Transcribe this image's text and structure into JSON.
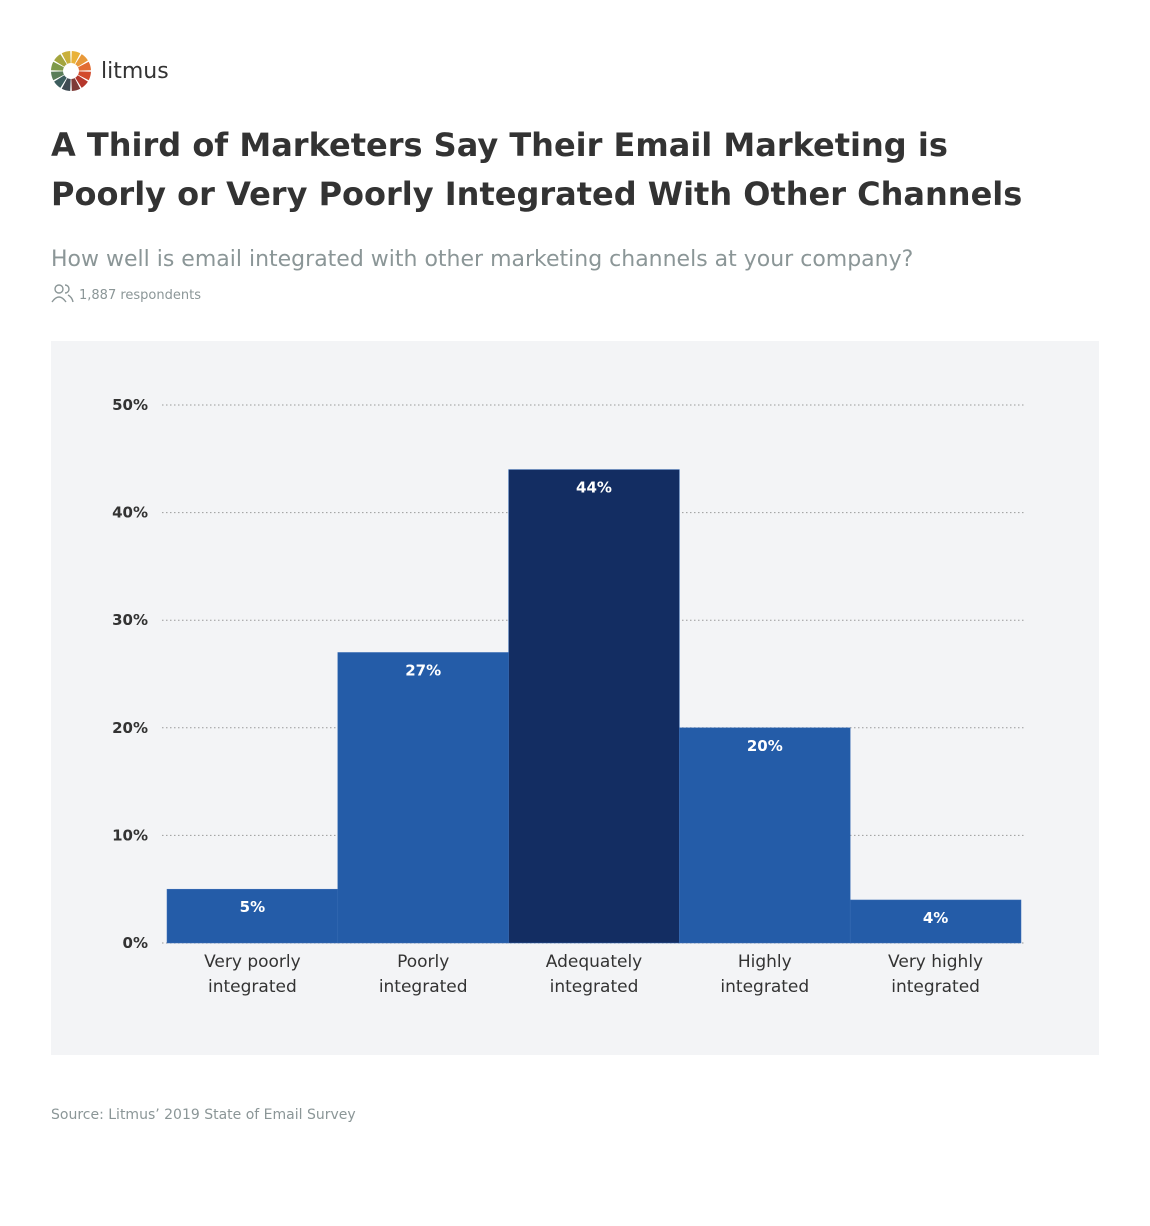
{
  "brand": "litmus",
  "chart_data": {
    "type": "bar",
    "title": [
      "A Third of Marketers Say Their Email Marketing is",
      "Poorly or Very Poorly Integrated With Other Channels"
    ],
    "subtitle": "How well is email integrated with other marketing channels at your company?",
    "respondents": "1,887 respondents",
    "categories": [
      [
        "Very poorly",
        "integrated"
      ],
      [
        "Poorly",
        "integrated"
      ],
      [
        "Adequately",
        "integrated"
      ],
      [
        "Highly",
        "integrated"
      ],
      [
        "Very highly",
        "integrated"
      ]
    ],
    "values": [
      5,
      27,
      44,
      20,
      4
    ],
    "value_labels": [
      "5%",
      "27%",
      "44%",
      "20%",
      "4%"
    ],
    "colors": [
      "#245ca8",
      "#245ca8",
      "#132d62",
      "#245ca8",
      "#245ca8"
    ],
    "ylim": [
      0,
      50
    ],
    "yticks": [
      {
        "value": 0,
        "label": "0%"
      },
      {
        "value": 10,
        "label": "10%"
      },
      {
        "value": 20,
        "label": "20%"
      },
      {
        "value": 30,
        "label": "30%"
      },
      {
        "value": 40,
        "label": "40%"
      },
      {
        "value": 50,
        "label": "50%"
      }
    ],
    "grid": true,
    "source": "Source: Litmus’ 2019 State of Email Survey"
  }
}
